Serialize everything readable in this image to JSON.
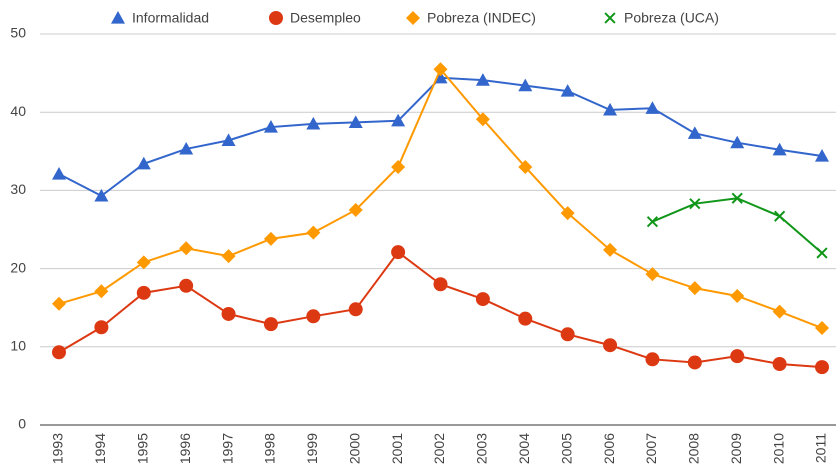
{
  "chart_data": {
    "type": "line",
    "categories": [
      "1993",
      "1994",
      "1995",
      "1996",
      "1997",
      "1998",
      "1999",
      "2000",
      "2001",
      "2002",
      "2003",
      "2004",
      "2005",
      "2006",
      "2007",
      "2008",
      "2009",
      "2010",
      "2011"
    ],
    "series": [
      {
        "name": "Informalidad",
        "color": "#3366cc",
        "marker": "triangle",
        "values": [
          32.1,
          29.3,
          33.4,
          35.3,
          36.4,
          38.1,
          38.5,
          38.7,
          38.9,
          44.4,
          44.1,
          43.4,
          42.7,
          40.3,
          40.5,
          37.3,
          36.1,
          35.2,
          34.4
        ]
      },
      {
        "name": "Desempleo",
        "color": "#dc3912",
        "marker": "circle",
        "values": [
          9.3,
          12.5,
          16.9,
          17.8,
          14.2,
          12.9,
          13.9,
          14.8,
          22.1,
          18.0,
          16.1,
          13.6,
          11.6,
          10.2,
          8.4,
          8.0,
          8.8,
          7.8,
          7.4
        ]
      },
      {
        "name": "Pobreza (INDEC)",
        "color": "#ff9900",
        "marker": "diamond",
        "values": [
          15.5,
          17.1,
          20.8,
          22.6,
          21.6,
          23.8,
          24.6,
          27.5,
          33.0,
          45.5,
          39.1,
          33.0,
          27.1,
          22.4,
          19.3,
          17.5,
          16.5,
          14.5,
          12.4
        ]
      },
      {
        "name": "Pobreza (UCA)",
        "color": "#109618",
        "marker": "x",
        "values": [
          null,
          null,
          null,
          null,
          null,
          null,
          null,
          null,
          null,
          null,
          null,
          null,
          null,
          null,
          26.0,
          28.3,
          29.0,
          26.7,
          22.0
        ]
      }
    ],
    "ylim": [
      0,
      50
    ],
    "yticks": [
      0,
      10,
      20,
      30,
      40,
      50
    ],
    "grid": true,
    "legend": "top"
  }
}
